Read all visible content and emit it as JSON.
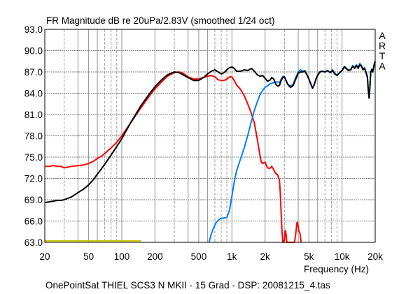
{
  "chart_data": {
    "type": "line",
    "title": "FR Magnitude dB re 20uPa/2.83V (smoothed 1/24 oct)",
    "subtitle": "OnePointSat THIEL SCS3 N MKII - 15 Grad - DSP: 20081215_4.tas",
    "xlabel": "Frequency (Hz)",
    "ylabel": "",
    "xscale": "log",
    "xlim": [
      20,
      20000
    ],
    "ylim": [
      63.0,
      93.0
    ],
    "grid": true,
    "watermark": [
      "A",
      "R",
      "T",
      "A"
    ],
    "x_ticks": [
      {
        "value": 20,
        "label": "20"
      },
      {
        "value": 50,
        "label": "50"
      },
      {
        "value": 100,
        "label": "100"
      },
      {
        "value": 200,
        "label": "200"
      },
      {
        "value": 500,
        "label": "500"
      },
      {
        "value": 1000,
        "label": "1k"
      },
      {
        "value": 2000,
        "label": "2k"
      },
      {
        "value": 5000,
        "label": "5k"
      },
      {
        "value": 10000,
        "label": "10k"
      },
      {
        "value": 20000,
        "label": "20k"
      }
    ],
    "y_ticks": [
      {
        "value": 93.0,
        "label": "93.0"
      },
      {
        "value": 90.0,
        "label": "90.0"
      },
      {
        "value": 87.0,
        "label": "87.0"
      },
      {
        "value": 84.0,
        "label": "84.0"
      },
      {
        "value": 81.0,
        "label": "81.0"
      },
      {
        "value": 78.0,
        "label": "78.0"
      },
      {
        "value": 75.0,
        "label": "75.0"
      },
      {
        "value": 72.0,
        "label": "72.0"
      },
      {
        "value": 69.0,
        "label": "69.0"
      },
      {
        "value": 66.0,
        "label": "66.0"
      },
      {
        "value": 63.0,
        "label": "63.0"
      }
    ],
    "minor_x_grid": [
      30,
      40,
      60,
      70,
      80,
      90,
      300,
      400,
      600,
      700,
      800,
      900,
      3000,
      4000,
      6000,
      7000,
      8000,
      9000
    ],
    "major_x_grid": [
      40,
      50,
      60,
      100,
      200,
      400,
      500,
      600,
      1000,
      2000,
      4000,
      5000,
      6000,
      10000
    ],
    "series": [
      {
        "name": "yellow-reference",
        "color": "#c8c800",
        "points": [
          [
            20,
            63.2
          ],
          [
            150,
            63.2
          ]
        ]
      },
      {
        "name": "red-woofer",
        "color": "#ff0000",
        "points": [
          [
            20,
            73.7
          ],
          [
            22,
            73.7
          ],
          [
            24,
            73.8
          ],
          [
            26,
            73.7
          ],
          [
            28,
            73.7
          ],
          [
            30,
            73.5
          ],
          [
            35,
            73.7
          ],
          [
            40,
            73.8
          ],
          [
            45,
            73.9
          ],
          [
            50,
            74.1
          ],
          [
            55,
            74.4
          ],
          [
            60,
            74.8
          ],
          [
            65,
            75.1
          ],
          [
            70,
            75.5
          ],
          [
            80,
            76.3
          ],
          [
            90,
            77.1
          ],
          [
            100,
            78.0
          ],
          [
            120,
            79.8
          ],
          [
            150,
            82.0
          ],
          [
            180,
            83.7
          ],
          [
            200,
            84.6
          ],
          [
            230,
            85.6
          ],
          [
            260,
            86.4
          ],
          [
            300,
            86.9
          ],
          [
            330,
            87.0
          ],
          [
            360,
            86.8
          ],
          [
            400,
            86.3
          ],
          [
            450,
            86.0
          ],
          [
            500,
            86.0
          ],
          [
            550,
            86.2
          ],
          [
            600,
            86.4
          ],
          [
            650,
            86.5
          ],
          [
            700,
            86.3
          ],
          [
            750,
            85.9
          ],
          [
            800,
            85.8
          ],
          [
            850,
            85.8
          ],
          [
            900,
            86.0
          ],
          [
            950,
            86.3
          ],
          [
            1000,
            86.3
          ],
          [
            1050,
            85.8
          ],
          [
            1100,
            85.2
          ],
          [
            1200,
            84.5
          ],
          [
            1300,
            83.6
          ],
          [
            1400,
            82.4
          ],
          [
            1500,
            81.2
          ],
          [
            1600,
            79.8
          ],
          [
            1700,
            77.5
          ],
          [
            1800,
            75.2
          ],
          [
            1850,
            74.3
          ],
          [
            1900,
            74.1
          ],
          [
            2000,
            74.3
          ],
          [
            2100,
            73.5
          ],
          [
            2200,
            73.4
          ],
          [
            2300,
            73.7
          ],
          [
            2400,
            73.2
          ],
          [
            2500,
            72.7
          ],
          [
            2600,
            72.5
          ],
          [
            2700,
            71.8
          ],
          [
            2750,
            70.0
          ],
          [
            2800,
            67.0
          ],
          [
            2850,
            64.5
          ],
          [
            2900,
            63.0
          ],
          [
            2950,
            63.0
          ],
          [
            3000,
            63.4
          ],
          [
            3050,
            64.7
          ],
          [
            3100,
            64.2
          ],
          [
            3150,
            63.0
          ],
          [
            3500,
            63.0
          ],
          [
            3700,
            63.0
          ],
          [
            3800,
            64.2
          ],
          [
            3900,
            65.8
          ],
          [
            3950,
            65.8
          ],
          [
            4050,
            64.6
          ],
          [
            4150,
            64.3
          ],
          [
            4250,
            63.0
          ]
        ]
      },
      {
        "name": "blue-tweeter",
        "color": "#0080ff",
        "points": [
          [
            620,
            63.0
          ],
          [
            650,
            64.2
          ],
          [
            680,
            65.0
          ],
          [
            720,
            65.8
          ],
          [
            760,
            66.2
          ],
          [
            800,
            66.4
          ],
          [
            850,
            66.4
          ],
          [
            900,
            66.5
          ],
          [
            950,
            67.5
          ],
          [
            1000,
            69.5
          ],
          [
            1050,
            71.5
          ],
          [
            1100,
            73.0
          ],
          [
            1200,
            74.8
          ],
          [
            1300,
            76.4
          ],
          [
            1400,
            78.2
          ],
          [
            1500,
            80.0
          ],
          [
            1600,
            81.6
          ],
          [
            1700,
            82.8
          ],
          [
            1800,
            83.8
          ],
          [
            1900,
            84.4
          ],
          [
            2000,
            84.8
          ],
          [
            2200,
            85.3
          ],
          [
            2400,
            85.5
          ],
          [
            2600,
            85.6
          ],
          [
            2700,
            85.5
          ],
          [
            2800,
            86.0
          ],
          [
            2900,
            86.4
          ],
          [
            3000,
            86.3
          ],
          [
            3200,
            85.3
          ],
          [
            3400,
            85.0
          ],
          [
            3600,
            85.3
          ],
          [
            3800,
            86.2
          ],
          [
            4000,
            87.0
          ],
          [
            4200,
            87.3
          ],
          [
            4400,
            87.1
          ],
          [
            4600,
            87.2
          ],
          [
            4800,
            86.6
          ],
          [
            5000,
            86.0
          ],
          [
            5200,
            85.3
          ],
          [
            5400,
            84.7
          ],
          [
            5600,
            85.2
          ],
          [
            5800,
            86.0
          ],
          [
            6000,
            86.5
          ],
          [
            6300,
            87.0
          ],
          [
            6600,
            87.1
          ],
          [
            7000,
            87.0
          ],
          [
            7400,
            87.2
          ],
          [
            7800,
            86.9
          ],
          [
            8200,
            87.3
          ],
          [
            8600,
            86.8
          ],
          [
            9000,
            86.5
          ],
          [
            9500,
            86.9
          ],
          [
            10000,
            87.2
          ],
          [
            10500,
            87.8
          ],
          [
            11000,
            87.5
          ],
          [
            11500,
            87.2
          ],
          [
            12000,
            87.4
          ],
          [
            12500,
            87.9
          ],
          [
            13000,
            87.6
          ],
          [
            13500,
            88.0
          ],
          [
            14000,
            87.6
          ],
          [
            14500,
            88.2
          ],
          [
            15000,
            87.9
          ],
          [
            15500,
            87.4
          ],
          [
            16000,
            87.6
          ],
          [
            16500,
            87.0
          ],
          [
            17000,
            86.3
          ],
          [
            17300,
            84.5
          ],
          [
            17600,
            83.3
          ],
          [
            17900,
            84.8
          ],
          [
            18200,
            87.0
          ],
          [
            18600,
            87.4
          ],
          [
            19000,
            87.1
          ],
          [
            19500,
            88.0
          ],
          [
            20000,
            88.6
          ]
        ]
      },
      {
        "name": "black-sum",
        "color": "#000000",
        "points": [
          [
            20,
            68.6
          ],
          [
            22,
            68.7
          ],
          [
            24,
            68.8
          ],
          [
            26,
            68.9
          ],
          [
            28,
            68.9
          ],
          [
            30,
            69.0
          ],
          [
            35,
            69.4
          ],
          [
            40,
            70.0
          ],
          [
            45,
            70.5
          ],
          [
            50,
            71.1
          ],
          [
            55,
            71.8
          ],
          [
            60,
            72.6
          ],
          [
            65,
            73.3
          ],
          [
            70,
            74.0
          ],
          [
            80,
            75.3
          ],
          [
            90,
            76.5
          ],
          [
            100,
            77.6
          ],
          [
            120,
            79.8
          ],
          [
            150,
            82.3
          ],
          [
            180,
            84.0
          ],
          [
            200,
            84.9
          ],
          [
            230,
            85.9
          ],
          [
            260,
            86.6
          ],
          [
            300,
            87.0
          ],
          [
            330,
            86.9
          ],
          [
            360,
            86.6
          ],
          [
            400,
            86.2
          ],
          [
            450,
            85.8
          ],
          [
            500,
            85.8
          ],
          [
            550,
            86.2
          ],
          [
            600,
            86.7
          ],
          [
            650,
            87.1
          ],
          [
            700,
            87.3
          ],
          [
            750,
            87.0
          ],
          [
            800,
            86.7
          ],
          [
            850,
            86.9
          ],
          [
            900,
            87.3
          ],
          [
            950,
            87.6
          ],
          [
            1000,
            87.7
          ],
          [
            1050,
            87.5
          ],
          [
            1100,
            87.1
          ],
          [
            1200,
            87.1
          ],
          [
            1300,
            87.3
          ],
          [
            1400,
            87.2
          ],
          [
            1500,
            87.5
          ],
          [
            1600,
            87.1
          ],
          [
            1700,
            86.6
          ],
          [
            1800,
            86.4
          ],
          [
            1900,
            86.5
          ],
          [
            2000,
            86.1
          ],
          [
            2100,
            85.7
          ],
          [
            2200,
            85.8
          ],
          [
            2300,
            86.2
          ],
          [
            2400,
            86.0
          ],
          [
            2500,
            85.3
          ],
          [
            2600,
            85.0
          ],
          [
            2700,
            85.1
          ],
          [
            2800,
            85.8
          ],
          [
            2900,
            86.2
          ],
          [
            3000,
            86.3
          ],
          [
            3200,
            85.3
          ],
          [
            3400,
            84.8
          ],
          [
            3600,
            85.1
          ],
          [
            3800,
            86.0
          ],
          [
            4000,
            86.8
          ],
          [
            4200,
            87.0
          ],
          [
            4400,
            87.0
          ],
          [
            4600,
            87.1
          ],
          [
            4800,
            86.6
          ],
          [
            5000,
            86.0
          ],
          [
            5200,
            85.3
          ],
          [
            5400,
            84.7
          ],
          [
            5600,
            85.2
          ],
          [
            5800,
            86.0
          ],
          [
            6000,
            86.5
          ],
          [
            6300,
            87.0
          ],
          [
            6600,
            87.1
          ],
          [
            7000,
            87.0
          ],
          [
            7400,
            87.2
          ],
          [
            7800,
            86.9
          ],
          [
            8200,
            87.2
          ],
          [
            8600,
            86.7
          ],
          [
            9000,
            86.5
          ],
          [
            9500,
            86.9
          ],
          [
            10000,
            87.2
          ],
          [
            10500,
            87.7
          ],
          [
            11000,
            87.4
          ],
          [
            11500,
            87.2
          ],
          [
            12000,
            87.3
          ],
          [
            12500,
            87.8
          ],
          [
            13000,
            87.5
          ],
          [
            13500,
            87.9
          ],
          [
            14000,
            87.5
          ],
          [
            14500,
            88.0
          ],
          [
            15000,
            87.8
          ],
          [
            15500,
            87.3
          ],
          [
            16000,
            87.5
          ],
          [
            16500,
            86.9
          ],
          [
            17000,
            86.2
          ],
          [
            17300,
            84.5
          ],
          [
            17600,
            83.3
          ],
          [
            17900,
            84.8
          ],
          [
            18200,
            86.9
          ],
          [
            18600,
            87.3
          ],
          [
            19000,
            87.0
          ],
          [
            19500,
            87.9
          ],
          [
            20000,
            88.4
          ]
        ]
      }
    ]
  }
}
